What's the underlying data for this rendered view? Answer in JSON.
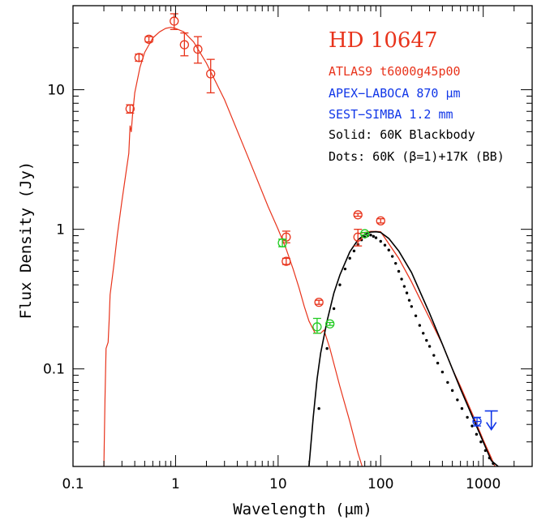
{
  "chart_data": {
    "type": "scatter",
    "title": "HD 10647",
    "xlabel": "Wavelength (μm)",
    "ylabel": "Flux Density (Jy)",
    "xscale": "log",
    "yscale": "log",
    "xlim": [
      0.1,
      3000
    ],
    "ylim": [
      0.02,
      40
    ],
    "x_ticks": [
      {
        "v": 0.1,
        "label": "0.1"
      },
      {
        "v": 1,
        "label": "1"
      },
      {
        "v": 10,
        "label": "10"
      },
      {
        "v": 100,
        "label": "100"
      },
      {
        "v": 1000,
        "label": "1000"
      }
    ],
    "y_ticks": [
      {
        "v": 0.1,
        "label": "0.1"
      },
      {
        "v": 1,
        "label": "1"
      },
      {
        "v": 10,
        "label": "10"
      }
    ],
    "legend": {
      "placement": "top-right",
      "entries": [
        {
          "text": "ATLAS9 t6000g45p00",
          "color": "#e8341c"
        },
        {
          "text": "APEX−LABOCA 870 μm",
          "color": "#1036e8"
        },
        {
          "text": "SEST−SIMBA 1.2 mm",
          "color": "#1036e8"
        },
        {
          "text": "Solid: 60K Blackbody",
          "color": "#000000"
        },
        {
          "text": "Dots: 60K (β=1)+17K (BB)",
          "color": "#000000"
        }
      ]
    },
    "colors": {
      "photosphere": "#e8341c",
      "submm": "#1036e8",
      "ir_green": "#22cc22",
      "blackbody": "#000000"
    },
    "series": [
      {
        "color": "#e8341c",
        "kind": "model_line",
        "points": [
          [
            0.2,
            0.02
          ],
          [
            0.205,
            0.06
          ],
          [
            0.21,
            0.14
          ],
          [
            0.22,
            0.155
          ],
          [
            0.225,
            0.22
          ],
          [
            0.23,
            0.34
          ],
          [
            0.25,
            0.55
          ],
          [
            0.27,
            0.9
          ],
          [
            0.3,
            1.6
          ],
          [
            0.33,
            2.6
          ],
          [
            0.35,
            3.5
          ],
          [
            0.36,
            5.5
          ],
          [
            0.37,
            5.0
          ],
          [
            0.38,
            6.5
          ],
          [
            0.4,
            9.5
          ],
          [
            0.45,
            14.5
          ],
          [
            0.5,
            18.5
          ],
          [
            0.6,
            23.5
          ],
          [
            0.7,
            26
          ],
          [
            0.8,
            27.5
          ],
          [
            0.9,
            28
          ],
          [
            1.0,
            27.5
          ],
          [
            1.2,
            26
          ],
          [
            1.5,
            22
          ],
          [
            2.0,
            15.5
          ],
          [
            3,
            8.5
          ],
          [
            5,
            3.4
          ],
          [
            8,
            1.45
          ],
          [
            10,
            1.0
          ],
          [
            12,
            0.72
          ],
          [
            14,
            0.52
          ],
          [
            16,
            0.38
          ],
          [
            18,
            0.28
          ],
          [
            20,
            0.22
          ],
          [
            23,
            0.18
          ],
          [
            26,
            0.18
          ],
          [
            28,
            0.19
          ],
          [
            32,
            0.14
          ],
          [
            40,
            0.075
          ],
          [
            50,
            0.042
          ],
          [
            60,
            0.025
          ],
          [
            66,
            0.02
          ]
        ]
      },
      {
        "color": "#e8341c",
        "kind": "total_model_line",
        "points": [
          [
            60,
            0.93
          ],
          [
            70,
            0.95
          ],
          [
            80,
            0.965
          ],
          [
            90,
            0.965
          ],
          [
            100,
            0.96
          ],
          [
            150,
            0.62
          ],
          [
            200,
            0.42
          ],
          [
            300,
            0.23
          ],
          [
            400,
            0.15
          ],
          [
            500,
            0.1
          ],
          [
            600,
            0.075
          ],
          [
            800,
            0.046
          ],
          [
            1000,
            0.031
          ],
          [
            1200,
            0.023
          ],
          [
            1300,
            0.02
          ]
        ]
      },
      {
        "color": "#000000",
        "kind": "blackbody_60K",
        "points": [
          [
            20,
            0.02
          ],
          [
            22,
            0.045
          ],
          [
            24,
            0.085
          ],
          [
            26,
            0.13
          ],
          [
            30,
            0.22
          ],
          [
            35,
            0.35
          ],
          [
            40,
            0.47
          ],
          [
            50,
            0.69
          ],
          [
            60,
            0.84
          ],
          [
            70,
            0.92
          ],
          [
            80,
            0.955
          ],
          [
            90,
            0.96
          ],
          [
            100,
            0.95
          ],
          [
            120,
            0.86
          ],
          [
            150,
            0.7
          ],
          [
            200,
            0.49
          ],
          [
            300,
            0.25
          ],
          [
            400,
            0.15
          ],
          [
            500,
            0.1
          ],
          [
            600,
            0.072
          ],
          [
            800,
            0.044
          ],
          [
            1000,
            0.03
          ],
          [
            1200,
            0.022
          ],
          [
            1400,
            0.02
          ]
        ]
      },
      {
        "color": "#000000",
        "kind": "dots_two_component",
        "points": [
          [
            25,
            0.052
          ],
          [
            30,
            0.14
          ],
          [
            35,
            0.27
          ],
          [
            40,
            0.4
          ],
          [
            45,
            0.52
          ],
          [
            50,
            0.62
          ],
          [
            55,
            0.7
          ],
          [
            60,
            0.78
          ],
          [
            65,
            0.84
          ],
          [
            70,
            0.88
          ],
          [
            75,
            0.9
          ],
          [
            80,
            0.91
          ],
          [
            85,
            0.89
          ],
          [
            90,
            0.87
          ],
          [
            100,
            0.82
          ],
          [
            110,
            0.77
          ],
          [
            120,
            0.71
          ],
          [
            130,
            0.64
          ],
          [
            140,
            0.57
          ],
          [
            150,
            0.5
          ],
          [
            160,
            0.44
          ],
          [
            170,
            0.39
          ],
          [
            180,
            0.35
          ],
          [
            190,
            0.31
          ],
          [
            200,
            0.28
          ],
          [
            220,
            0.24
          ],
          [
            240,
            0.205
          ],
          [
            260,
            0.18
          ],
          [
            280,
            0.16
          ],
          [
            300,
            0.145
          ],
          [
            330,
            0.125
          ],
          [
            360,
            0.11
          ],
          [
            400,
            0.095
          ],
          [
            450,
            0.08
          ],
          [
            500,
            0.07
          ],
          [
            560,
            0.06
          ],
          [
            620,
            0.052
          ],
          [
            700,
            0.045
          ],
          [
            780,
            0.039
          ],
          [
            860,
            0.034
          ],
          [
            950,
            0.03
          ],
          [
            1050,
            0.026
          ],
          [
            1150,
            0.023
          ],
          [
            1250,
            0.021
          ]
        ]
      },
      {
        "color": "#e8341c",
        "kind": "photometry",
        "points": [
          {
            "x": 0.36,
            "y": 7.3,
            "lo": 6.8,
            "hi": 7.8
          },
          {
            "x": 0.44,
            "y": 17,
            "lo": 16,
            "hi": 18
          },
          {
            "x": 0.55,
            "y": 23,
            "lo": 22,
            "hi": 24
          },
          {
            "x": 0.97,
            "y": 31,
            "lo": 27,
            "hi": 35
          },
          {
            "x": 1.22,
            "y": 21,
            "lo": 17.5,
            "hi": 25.5
          },
          {
            "x": 1.65,
            "y": 19.5,
            "lo": 15.5,
            "hi": 24
          },
          {
            "x": 2.2,
            "y": 13,
            "lo": 9.5,
            "hi": 16.5
          },
          {
            "x": 12,
            "y": 0.88,
            "lo": 0.8,
            "hi": 0.97
          },
          {
            "x": 12,
            "y": 0.59,
            "lo": 0.56,
            "hi": 0.62
          },
          {
            "x": 25,
            "y": 0.3,
            "lo": 0.29,
            "hi": 0.31
          },
          {
            "x": 60,
            "y": 1.27,
            "lo": 1.24,
            "hi": 1.3
          },
          {
            "x": 60,
            "y": 0.88,
            "lo": 0.76,
            "hi": 1.0
          },
          {
            "x": 100,
            "y": 1.15,
            "lo": 1.11,
            "hi": 1.19
          }
        ]
      },
      {
        "color": "#22cc22",
        "kind": "ir_photometry",
        "points": [
          {
            "x": 11,
            "y": 0.8,
            "lo": 0.75,
            "hi": 0.85
          },
          {
            "x": 24,
            "y": 0.2,
            "lo": 0.18,
            "hi": 0.23
          },
          {
            "x": 32,
            "y": 0.21,
            "lo": 0.205,
            "hi": 0.215
          },
          {
            "x": 70,
            "y": 0.93,
            "lo": 0.91,
            "hi": 0.95
          }
        ]
      },
      {
        "color": "#1036e8",
        "kind": "submm_photometry",
        "points": [
          {
            "x": 870,
            "y": 0.042,
            "lo": 0.039,
            "hi": 0.045,
            "xlo": 800,
            "xhi": 940
          }
        ]
      },
      {
        "color": "#1036e8",
        "kind": "upper_limit",
        "points": [
          {
            "x": 1200,
            "y": 0.05
          }
        ]
      }
    ]
  }
}
